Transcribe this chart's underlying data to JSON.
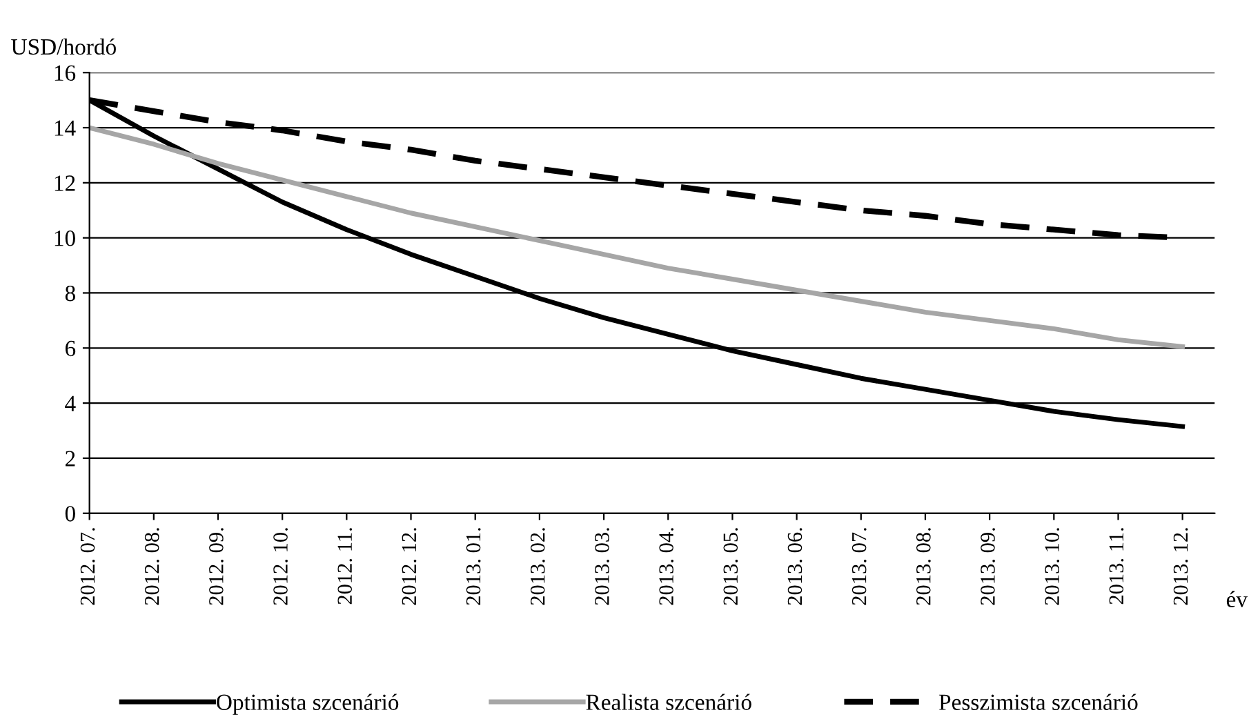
{
  "chart_data": {
    "type": "line",
    "ylabel": "USD/hordó",
    "xlabel": "év",
    "categories": [
      "2012. 07.",
      "2012. 08.",
      "2012. 09.",
      "2012. 10.",
      "2012. 11.",
      "2012. 12.",
      "2013. 01.",
      "2013. 02.",
      "2013. 03.",
      "2013. 04.",
      "2013. 05.",
      "2013. 06.",
      "2013. 07.",
      "2013. 08.",
      "2013. 09.",
      "2013. 10.",
      "2013. 11.",
      "2013. 12."
    ],
    "series": [
      {
        "name": "Optimista szcenárió",
        "color": "#000000",
        "line_style": "solid",
        "values": [
          15,
          13.7,
          12.5,
          11.3,
          10.3,
          9.4,
          8.6,
          7.8,
          7.1,
          6.5,
          5.9,
          5.4,
          4.9,
          4.5,
          4.1,
          3.7,
          3.4,
          3.15
        ]
      },
      {
        "name": "Realista szcenárió",
        "color": "#a6a6a6",
        "line_style": "solid",
        "values": [
          14,
          13.4,
          12.7,
          12.1,
          11.5,
          10.9,
          10.4,
          9.9,
          9.4,
          8.9,
          8.5,
          8.1,
          7.7,
          7.3,
          7.0,
          6.7,
          6.3,
          6.05
        ]
      },
      {
        "name": "Pesszimista szcenárió",
        "color": "#000000",
        "line_style": "dashed",
        "values": [
          15,
          14.6,
          14.2,
          13.9,
          13.5,
          13.2,
          12.8,
          12.5,
          12.2,
          11.9,
          11.6,
          11.3,
          11.0,
          10.8,
          10.5,
          10.3,
          10.1,
          10.0
        ]
      }
    ],
    "ylim": [
      0,
      16
    ],
    "yticks": [
      0,
      2,
      4,
      6,
      8,
      10,
      12,
      14,
      16
    ],
    "grid": "y",
    "legend": "bottom",
    "marker": "none"
  }
}
